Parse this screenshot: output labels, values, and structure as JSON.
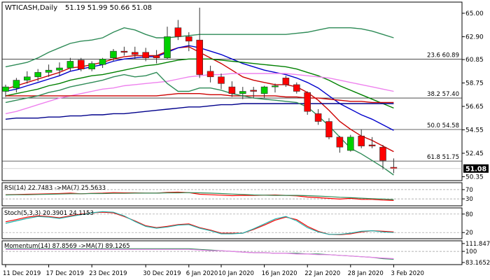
{
  "chart_data": {
    "type": "candlestick",
    "header": {
      "symbol": "WTICASH,Daily",
      "ohlc": "51.19 51.99 50.66 51.08"
    },
    "price_axis": {
      "ticks": [
        65.0,
        62.9,
        60.85,
        58.75,
        56.65,
        54.55,
        52.45,
        50.35
      ],
      "tick_labels": [
        "65.00",
        "62.90",
        "60.85",
        "58.75",
        "56.65",
        "54.55",
        "52.45",
        "50.35"
      ],
      "range": [
        50.0,
        66.0
      ],
      "last_price_label": "51.08"
    },
    "date_axis": {
      "labels": [
        "11 Dec 2019",
        "17 Dec 2019",
        "23 Dec 2019",
        "30 Dec 2019",
        "6 Jan 2020",
        "10 Jan 2020",
        "16 Jan 2020",
        "22 Jan 2020",
        "28 Jan 2020",
        "3 Feb 2020"
      ],
      "label_index": [
        0,
        4,
        8,
        13,
        17,
        20,
        24,
        28,
        32,
        36
      ]
    },
    "fib_levels": [
      {
        "label": "23.6 60.89",
        "value": 60.89
      },
      {
        "label": "38.2 57.40",
        "value": 57.4
      },
      {
        "label": "50.0 54.58",
        "value": 54.58
      },
      {
        "label": "61.8 51.75",
        "value": 51.75
      }
    ],
    "candles": [
      {
        "o": 58.0,
        "h": 58.6,
        "l": 57.5,
        "c": 58.4
      },
      {
        "o": 58.3,
        "h": 59.2,
        "l": 57.9,
        "c": 59.0
      },
      {
        "o": 59.0,
        "h": 59.8,
        "l": 58.7,
        "c": 59.3
      },
      {
        "o": 59.3,
        "h": 60.0,
        "l": 58.9,
        "c": 59.7
      },
      {
        "o": 59.7,
        "h": 60.4,
        "l": 59.3,
        "c": 59.9
      },
      {
        "o": 59.9,
        "h": 60.6,
        "l": 59.4,
        "c": 60.1
      },
      {
        "o": 60.1,
        "h": 61.0,
        "l": 59.8,
        "c": 60.7
      },
      {
        "o": 60.8,
        "h": 61.0,
        "l": 59.8,
        "c": 60.0
      },
      {
        "o": 60.0,
        "h": 60.7,
        "l": 59.8,
        "c": 60.5
      },
      {
        "o": 60.4,
        "h": 61.0,
        "l": 60.1,
        "c": 60.9
      },
      {
        "o": 61.0,
        "h": 61.8,
        "l": 60.7,
        "c": 61.6
      },
      {
        "o": 61.6,
        "h": 62.0,
        "l": 61.2,
        "c": 61.5
      },
      {
        "o": 61.5,
        "h": 62.0,
        "l": 60.9,
        "c": 61.3
      },
      {
        "o": 61.5,
        "h": 61.9,
        "l": 60.7,
        "c": 61.0
      },
      {
        "o": 61.2,
        "h": 61.7,
        "l": 60.5,
        "c": 61.0
      },
      {
        "o": 61.0,
        "h": 63.8,
        "l": 60.9,
        "c": 62.9
      },
      {
        "o": 63.7,
        "h": 64.4,
        "l": 62.6,
        "c": 62.9
      },
      {
        "o": 62.9,
        "h": 63.3,
        "l": 61.6,
        "c": 62.5
      },
      {
        "o": 62.6,
        "h": 65.5,
        "l": 59.2,
        "c": 59.5
      },
      {
        "o": 59.8,
        "h": 60.3,
        "l": 58.8,
        "c": 59.3
      },
      {
        "o": 59.3,
        "h": 59.6,
        "l": 58.2,
        "c": 58.7
      },
      {
        "o": 58.4,
        "h": 58.9,
        "l": 57.5,
        "c": 57.8
      },
      {
        "o": 57.8,
        "h": 58.4,
        "l": 57.3,
        "c": 58.0
      },
      {
        "o": 58.1,
        "h": 58.4,
        "l": 57.4,
        "c": 58.0
      },
      {
        "o": 57.8,
        "h": 58.5,
        "l": 57.4,
        "c": 58.4
      },
      {
        "o": 58.4,
        "h": 58.7,
        "l": 57.9,
        "c": 58.5
      },
      {
        "o": 59.2,
        "h": 59.4,
        "l": 58.4,
        "c": 58.6
      },
      {
        "o": 58.6,
        "h": 58.8,
        "l": 57.8,
        "c": 58.0
      },
      {
        "o": 57.9,
        "h": 58.0,
        "l": 55.9,
        "c": 56.2
      },
      {
        "o": 56.0,
        "h": 56.4,
        "l": 55.0,
        "c": 55.3
      },
      {
        "o": 55.3,
        "h": 55.6,
        "l": 53.7,
        "c": 53.9
      },
      {
        "o": 53.9,
        "h": 54.0,
        "l": 52.5,
        "c": 53.0
      },
      {
        "o": 52.7,
        "h": 54.1,
        "l": 52.6,
        "c": 53.9
      },
      {
        "o": 54.0,
        "h": 54.6,
        "l": 52.9,
        "c": 53.1
      },
      {
        "o": 53.2,
        "h": 53.9,
        "l": 52.9,
        "c": 53.1
      },
      {
        "o": 53.0,
        "h": 53.2,
        "l": 51.0,
        "c": 51.8
      },
      {
        "o": 51.19,
        "h": 51.99,
        "l": 50.66,
        "c": 51.08
      }
    ],
    "overlays": [
      {
        "color": "#cc0000",
        "values": [
          58.2,
          58.5,
          58.8,
          59.1,
          59.4,
          59.7,
          60.1,
          60.2,
          60.4,
          60.6,
          60.9,
          61.1,
          61.2,
          61.2,
          61.2,
          61.6,
          61.9,
          62.0,
          61.5,
          61.0,
          60.5,
          59.9,
          59.3,
          59.0,
          58.8,
          58.6,
          58.6,
          58.4,
          57.9,
          57.2,
          56.3,
          55.3,
          54.6,
          54.0,
          53.6,
          53.1,
          52.6
        ]
      },
      {
        "color": "#0000cc",
        "values": [
          58.0,
          58.2,
          58.5,
          58.8,
          59.1,
          59.4,
          59.8,
          60.0,
          60.2,
          60.4,
          60.7,
          60.9,
          61.0,
          61.1,
          61.1,
          61.5,
          61.9,
          62.1,
          61.9,
          61.6,
          61.3,
          60.9,
          60.5,
          60.2,
          59.9,
          59.7,
          59.5,
          59.2,
          58.8,
          58.3,
          57.6,
          56.9,
          56.4,
          55.9,
          55.5,
          55.0,
          54.5
        ]
      },
      {
        "color": "#008000",
        "values": [
          57.6,
          57.8,
          58.0,
          58.2,
          58.5,
          58.7,
          59.0,
          59.2,
          59.4,
          59.5,
          59.7,
          59.9,
          60.1,
          60.3,
          60.4,
          60.6,
          60.8,
          60.9,
          60.9,
          60.9,
          60.8,
          60.7,
          60.6,
          60.5,
          60.4,
          60.3,
          60.2,
          60.0,
          59.7,
          59.4,
          59.0,
          58.5,
          58.1,
          57.7,
          57.3,
          56.9,
          56.5
        ]
      },
      {
        "color": "#ee82ee",
        "values": [
          56.0,
          56.2,
          56.5,
          56.8,
          57.1,
          57.4,
          57.6,
          57.8,
          58.0,
          58.2,
          58.3,
          58.5,
          58.6,
          58.7,
          58.8,
          58.9,
          59.1,
          59.3,
          59.4,
          59.5,
          59.5,
          59.6,
          59.6,
          59.6,
          59.6,
          59.6,
          59.6,
          59.5,
          59.4,
          59.3,
          59.2,
          59.0,
          58.8,
          58.6,
          58.4,
          58.2,
          58.0
        ]
      },
      {
        "color": "#cc0000",
        "values": [
          57.6,
          57.6,
          57.6,
          57.6,
          57.6,
          57.6,
          57.6,
          57.6,
          57.6,
          57.6,
          57.6,
          57.6,
          57.6,
          57.6,
          57.6,
          57.7,
          57.8,
          57.8,
          57.8,
          57.7,
          57.7,
          57.6,
          57.6,
          57.6,
          57.6,
          57.6,
          57.5,
          57.5,
          57.4,
          57.4,
          57.3,
          57.2,
          57.1,
          57.1,
          57.0,
          57.0,
          57.0
        ]
      },
      {
        "color": "#00008b",
        "values": [
          55.5,
          55.6,
          55.6,
          55.6,
          55.7,
          55.7,
          55.8,
          55.8,
          55.9,
          55.9,
          56.0,
          56.0,
          56.1,
          56.2,
          56.3,
          56.4,
          56.5,
          56.6,
          56.6,
          56.7,
          56.8,
          56.8,
          56.9,
          56.9,
          56.9,
          56.9,
          56.9,
          56.9,
          56.9,
          56.9,
          56.9,
          56.9,
          56.9,
          56.9,
          56.9,
          56.9,
          56.9
        ]
      },
      {
        "color": "#2e8b57",
        "values": [
          60.2,
          60.4,
          60.6,
          61.0,
          61.5,
          61.9,
          62.3,
          62.5,
          62.6,
          62.8,
          63.3,
          63.7,
          63.5,
          63.1,
          62.8,
          62.8,
          62.9,
          63.0,
          63.1,
          63.1,
          63.1,
          63.1,
          63.1,
          63.1,
          63.1,
          63.1,
          63.1,
          63.2,
          63.3,
          63.5,
          63.7,
          63.7,
          63.7,
          63.6,
          63.4,
          63.1,
          62.8
        ]
      },
      {
        "color": "#2e8b57",
        "values": [
          57.0,
          57.2,
          57.4,
          57.6,
          57.9,
          58.1,
          58.4,
          58.6,
          58.8,
          59.0,
          59.3,
          59.5,
          59.3,
          59.4,
          59.7,
          58.7,
          58.0,
          58.0,
          58.3,
          58.3,
          58.1,
          57.8,
          57.6,
          57.4,
          57.3,
          57.2,
          57.1,
          57.0,
          56.6,
          55.8,
          54.9,
          53.9,
          52.9,
          52.4,
          51.8,
          51.2,
          50.5
        ]
      }
    ],
    "panels": [
      {
        "label": "RSI(14) 22.7483 ->MA(7) 25.5633",
        "range": [
          0,
          100
        ],
        "ticks": [
          "70",
          "30"
        ],
        "tick_values": [
          70,
          30
        ],
        "ref_lines": [
          70,
          30
        ],
        "series": [
          {
            "color": "#ff0000",
            "values": [
              48,
              49,
              50,
              51,
              52,
              53,
              55,
              52,
              54,
              55,
              57,
              56,
              56,
              55,
              55,
              58,
              59,
              57,
              50,
              48,
              46,
              44,
              45,
              45,
              46,
              47,
              45,
              43,
              38,
              35,
              32,
              29,
              32,
              28,
              28,
              25,
              23
            ]
          },
          {
            "color": "#2e8b57",
            "values": [
              47,
              48,
              48,
              49,
              50,
              51,
              52,
              52,
              53,
              53,
              54,
              54,
              55,
              55,
              55,
              56,
              56,
              57,
              56,
              55,
              53,
              51,
              49,
              47,
              46,
              45,
              45,
              45,
              44,
              42,
              40,
              37,
              35,
              33,
              31,
              29,
              27
            ]
          }
        ]
      },
      {
        "label": "Stoch(5,3,3) 20.3901 24.1153",
        "range": [
          0,
          100
        ],
        "ticks": [
          "80",
          "20"
        ],
        "tick_values": [
          80,
          20
        ],
        "ref_lines": [
          80,
          20
        ],
        "series": [
          {
            "color": "#ff0000",
            "values": [
              55,
              62,
              70,
              74,
              72,
              68,
              74,
              80,
              84,
              86,
              84,
              72,
              58,
              42,
              36,
              40,
              46,
              48,
              36,
              28,
              18,
              18,
              18,
              30,
              44,
              60,
              70,
              62,
              40,
              24,
              14,
              13,
              16,
              22,
              26,
              24,
              22
            ]
          },
          {
            "color": "#20b2aa",
            "values": [
              50,
              58,
              66,
              72,
              70,
              66,
              72,
              78,
              84,
              88,
              86,
              74,
              56,
              40,
              34,
              38,
              44,
              46,
              34,
              26,
              16,
              16,
              18,
              32,
              48,
              64,
              72,
              58,
              36,
              22,
              14,
              14,
              18,
              24,
              26,
              22,
              20
            ]
          }
        ]
      },
      {
        "label": "Momentum(14) 87.8569 ->MA(7) 89.1265",
        "range": [
          80,
          116
        ],
        "ticks": [
          "111.8472",
          "100",
          "83.1652"
        ],
        "tick_values": [
          111.8472,
          100,
          83.1652
        ],
        "ref_lines": [
          100
        ],
        "series": [
          {
            "color": "#2e8b57",
            "values": [
              104,
              104,
              104,
              104,
              104,
              104,
              104,
              104,
              104,
              104,
              104,
              104,
              104,
              104,
              104,
              104,
              104,
              104,
              103,
              102,
              101,
              100,
              99,
              98,
              98,
              97,
              97,
              97,
              96,
              96,
              95,
              94,
              93,
              92,
              91,
              89,
              88
            ]
          },
          {
            "color": "#ee82ee",
            "values": [
              103,
              103,
              103,
              103,
              103,
              103,
              103,
              103,
              103,
              103,
              103,
              103,
              103,
              103,
              103,
              103,
              103,
              103,
              102,
              101,
              101,
              100,
              99,
              98,
              98,
              97,
              97,
              96,
              96,
              95,
              95,
              94,
              93,
              92,
              91,
              90,
              89
            ]
          }
        ]
      }
    ]
  }
}
